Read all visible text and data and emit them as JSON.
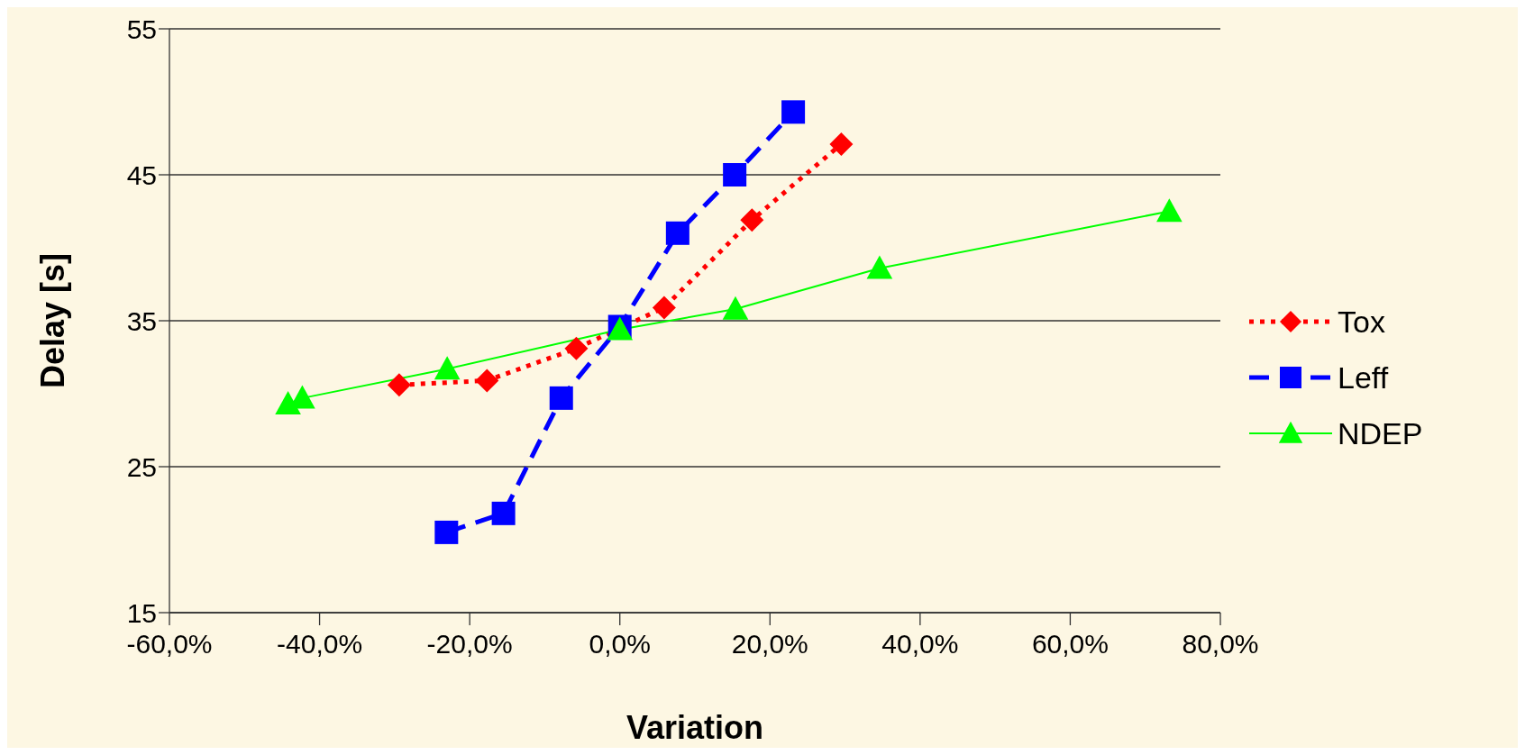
{
  "chart_data": {
    "type": "line",
    "xlabel": "Variation",
    "ylabel": "Delay [s]",
    "xlim": [
      -60,
      80
    ],
    "xticks": [
      {
        "value": -60,
        "label": "-60,0%"
      },
      {
        "value": -40,
        "label": "-40,0%"
      },
      {
        "value": -20,
        "label": "-20,0%"
      },
      {
        "value": 0,
        "label": "0,0%"
      },
      {
        "value": 20,
        "label": "20,0%"
      },
      {
        "value": 40,
        "label": "40,0%"
      },
      {
        "value": 60,
        "label": "60,0%"
      },
      {
        "value": 80,
        "label": "80,0%"
      }
    ],
    "ylim": [
      15,
      55
    ],
    "yticks": [
      15,
      25,
      35,
      45,
      55
    ],
    "grid": "y",
    "legend": "right",
    "series": [
      {
        "name": "Tox",
        "color": "#ff0000",
        "marker": "diamond",
        "line_style": "dotted",
        "x": [
          -29.4,
          -17.7,
          -5.8,
          5.9,
          17.6,
          29.5
        ],
        "values": [
          30.6,
          30.9,
          33.1,
          35.9,
          41.9,
          47.1
        ]
      },
      {
        "name": "Leff",
        "color": "#0000ff",
        "marker": "square",
        "line_style": "dashed",
        "x": [
          -23.1,
          -15.5,
          -7.8,
          0,
          7.7,
          15.3,
          23.1
        ],
        "values": [
          20.5,
          21.8,
          29.7,
          34.6,
          41.0,
          45.0,
          49.3
        ]
      },
      {
        "name": "NDEP",
        "color": "#00ff00",
        "marker": "triangle",
        "line_style": "solid",
        "x": [
          -44.2,
          -42.3,
          -23.0,
          0,
          15.4,
          34.6,
          73.2
        ],
        "values": [
          29.3,
          29.7,
          31.7,
          34.4,
          35.8,
          38.6,
          42.5
        ]
      }
    ]
  }
}
